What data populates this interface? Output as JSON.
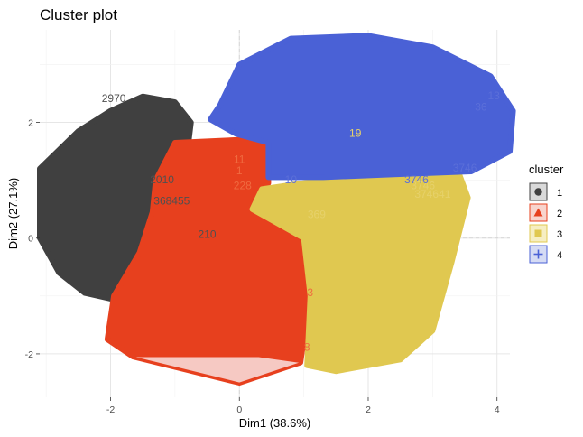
{
  "chart_data": {
    "type": "scatter",
    "title": "Cluster plot",
    "xlabel": "Dim1 (38.6%)",
    "ylabel": "Dim2 (27.1%)",
    "xlim": [
      -3.1,
      4.2
    ],
    "ylim": [
      -2.75,
      3.6
    ],
    "xticks": [
      -2,
      0,
      2,
      4
    ],
    "yticks": [
      -2,
      0,
      2
    ],
    "grid": true,
    "legend": {
      "title": "cluster",
      "position": "right"
    },
    "series": [
      {
        "name": "1",
        "color": "#404040",
        "marker": "circle",
        "hull": [
          [
            -2.5,
            1.85
          ],
          [
            -2.0,
            2.2
          ],
          [
            -1.5,
            2.45
          ],
          [
            -1.0,
            2.35
          ],
          [
            -0.75,
            2.0
          ],
          [
            -0.8,
            1.55
          ],
          [
            -1.3,
            1.0
          ],
          [
            -1.35,
            0.45
          ],
          [
            -1.55,
            -0.25
          ],
          [
            -2.0,
            -1.05
          ],
          [
            -2.4,
            -0.95
          ],
          [
            -2.8,
            -0.6
          ],
          [
            -3.1,
            0.0
          ],
          [
            -3.1,
            1.2
          ]
        ],
        "labels": [
          {
            "text": "368455",
            "x": -1.05,
            "y": 0.58
          },
          {
            "text": "2010",
            "x": -1.2,
            "y": 0.95
          },
          {
            "text": "2970",
            "x": -1.95,
            "y": 2.35
          },
          {
            "text": "210",
            "x": -0.5,
            "y": 0.0
          }
        ]
      },
      {
        "name": "2",
        "color": "#e7401e",
        "marker": "triangle",
        "hull": [
          [
            -1.0,
            1.65
          ],
          [
            0.0,
            1.7
          ],
          [
            0.45,
            1.65
          ],
          [
            0.45,
            0.95
          ],
          [
            0.2,
            0.6
          ],
          [
            1.0,
            0.0
          ],
          [
            1.1,
            -1.0
          ],
          [
            0.95,
            -2.15
          ],
          [
            0.0,
            -2.5
          ],
          [
            -1.65,
            -2.05
          ],
          [
            -2.05,
            -1.75
          ],
          [
            -1.95,
            -1.0
          ],
          [
            -1.55,
            -0.25
          ],
          [
            -1.35,
            0.45
          ],
          [
            -1.3,
            1.0
          ]
        ],
        "labels": [
          {
            "text": "228",
            "x": 0.05,
            "y": 0.85
          },
          {
            "text": "11",
            "x": 0.0,
            "y": 1.3
          },
          {
            "text": "1",
            "x": 0.0,
            "y": 1.1
          },
          {
            "text": "3",
            "x": 1.1,
            "y": -1.0
          },
          {
            "text": "8",
            "x": 1.05,
            "y": -1.95
          }
        ]
      },
      {
        "name": "3",
        "color": "#e0c850",
        "marker": "square",
        "hull": [
          [
            0.35,
            0.85
          ],
          [
            1.3,
            1.0
          ],
          [
            2.4,
            1.15
          ],
          [
            3.4,
            1.15
          ],
          [
            3.55,
            0.7
          ],
          [
            3.3,
            -0.4
          ],
          [
            3.0,
            -1.6
          ],
          [
            2.5,
            -2.1
          ],
          [
            1.5,
            -2.3
          ],
          [
            1.05,
            -2.2
          ],
          [
            1.1,
            -1.0
          ],
          [
            1.0,
            0.0
          ],
          [
            0.2,
            0.5
          ]
        ],
        "labels": [
          {
            "text": "3746",
            "x": 2.85,
            "y": 0.85
          },
          {
            "text": "374641",
            "x": 3.0,
            "y": 0.7
          },
          {
            "text": "369",
            "x": 1.2,
            "y": 0.35
          },
          {
            "text": "19",
            "x": 1.8,
            "y": 1.75
          }
        ]
      },
      {
        "name": "4",
        "color": "#4a61d6",
        "marker": "cross",
        "hull": [
          [
            -0.3,
            2.3
          ],
          [
            0.0,
            3.0
          ],
          [
            0.8,
            3.45
          ],
          [
            2.0,
            3.5
          ],
          [
            3.0,
            3.3
          ],
          [
            3.9,
            2.8
          ],
          [
            4.25,
            2.2
          ],
          [
            4.2,
            1.5
          ],
          [
            3.6,
            1.15
          ],
          [
            2.4,
            1.1
          ],
          [
            1.3,
            1.05
          ],
          [
            0.45,
            1.05
          ],
          [
            0.45,
            1.65
          ],
          [
            -0.05,
            1.8
          ],
          [
            -0.45,
            2.05
          ]
        ],
        "labels": [
          {
            "text": "3746",
            "x": 2.75,
            "y": 0.95
          },
          {
            "text": "3746",
            "x": 3.5,
            "y": 1.15
          },
          {
            "text": "13",
            "x": 3.95,
            "y": 2.4
          },
          {
            "text": "36",
            "x": 3.75,
            "y": 2.2
          },
          {
            "text": "10",
            "x": 0.8,
            "y": 0.95
          }
        ]
      }
    ],
    "legend_entries": [
      "1",
      "2",
      "3",
      "4"
    ]
  }
}
